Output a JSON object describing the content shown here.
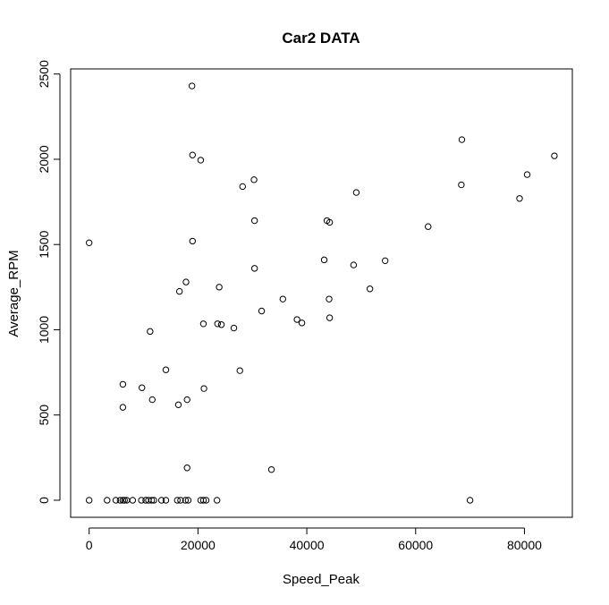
{
  "chart_data": {
    "type": "scatter",
    "title": "Car2 DATA",
    "xlabel": "Speed_Peak",
    "ylabel": "Average_RPM",
    "xlim": [
      -3400,
      88800
    ],
    "ylim": [
      -100,
      2530
    ],
    "x_ticks": [
      0,
      20000,
      40000,
      60000,
      80000
    ],
    "x_tick_labels": [
      "0",
      "20000",
      "40000",
      "60000",
      "80000"
    ],
    "y_ticks": [
      0,
      500,
      1000,
      1500,
      2000,
      2500
    ],
    "y_tick_labels": [
      "0",
      "500",
      "1000",
      "1500",
      "2000",
      "2500"
    ],
    "grid": false,
    "legend": "none",
    "points": [
      {
        "x": 0,
        "y": 1510
      },
      {
        "x": 0,
        "y": 0
      },
      {
        "x": 3300,
        "y": 0
      },
      {
        "x": 4900,
        "y": 0
      },
      {
        "x": 5700,
        "y": 0
      },
      {
        "x": 6200,
        "y": 0
      },
      {
        "x": 6500,
        "y": 0
      },
      {
        "x": 6900,
        "y": 0
      },
      {
        "x": 8000,
        "y": 0
      },
      {
        "x": 9600,
        "y": 0
      },
      {
        "x": 10400,
        "y": 0
      },
      {
        "x": 10900,
        "y": 0
      },
      {
        "x": 11500,
        "y": 0
      },
      {
        "x": 11900,
        "y": 0
      },
      {
        "x": 13300,
        "y": 0
      },
      {
        "x": 14100,
        "y": 0
      },
      {
        "x": 16200,
        "y": 0
      },
      {
        "x": 16800,
        "y": 0
      },
      {
        "x": 17700,
        "y": 0
      },
      {
        "x": 18200,
        "y": 0
      },
      {
        "x": 20500,
        "y": 0
      },
      {
        "x": 21000,
        "y": 0
      },
      {
        "x": 21500,
        "y": 0
      },
      {
        "x": 23500,
        "y": 0
      },
      {
        "x": 70000,
        "y": 0
      },
      {
        "x": 6200,
        "y": 680
      },
      {
        "x": 6200,
        "y": 545
      },
      {
        "x": 9700,
        "y": 660
      },
      {
        "x": 11200,
        "y": 990
      },
      {
        "x": 11600,
        "y": 590
      },
      {
        "x": 14100,
        "y": 765
      },
      {
        "x": 16400,
        "y": 560
      },
      {
        "x": 16600,
        "y": 1225
      },
      {
        "x": 17800,
        "y": 1280
      },
      {
        "x": 18000,
        "y": 590
      },
      {
        "x": 18000,
        "y": 190
      },
      {
        "x": 18900,
        "y": 2430
      },
      {
        "x": 19000,
        "y": 2025
      },
      {
        "x": 19000,
        "y": 1520
      },
      {
        "x": 20500,
        "y": 1995
      },
      {
        "x": 21000,
        "y": 1035
      },
      {
        "x": 21100,
        "y": 655
      },
      {
        "x": 23600,
        "y": 1035
      },
      {
        "x": 23900,
        "y": 1250
      },
      {
        "x": 24300,
        "y": 1030
      },
      {
        "x": 26600,
        "y": 1010
      },
      {
        "x": 27700,
        "y": 760
      },
      {
        "x": 28200,
        "y": 1840
      },
      {
        "x": 30300,
        "y": 1880
      },
      {
        "x": 30400,
        "y": 1640
      },
      {
        "x": 30400,
        "y": 1360
      },
      {
        "x": 31700,
        "y": 1110
      },
      {
        "x": 33500,
        "y": 180
      },
      {
        "x": 35600,
        "y": 1180
      },
      {
        "x": 38200,
        "y": 1060
      },
      {
        "x": 39100,
        "y": 1040
      },
      {
        "x": 43200,
        "y": 1410
      },
      {
        "x": 43700,
        "y": 1640
      },
      {
        "x": 44200,
        "y": 1630
      },
      {
        "x": 44100,
        "y": 1180
      },
      {
        "x": 44200,
        "y": 1070
      },
      {
        "x": 48600,
        "y": 1380
      },
      {
        "x": 49100,
        "y": 1805
      },
      {
        "x": 51600,
        "y": 1240
      },
      {
        "x": 54400,
        "y": 1405
      },
      {
        "x": 62300,
        "y": 1605
      },
      {
        "x": 68400,
        "y": 1850
      },
      {
        "x": 68500,
        "y": 2115
      },
      {
        "x": 79100,
        "y": 1770
      },
      {
        "x": 80500,
        "y": 1910
      },
      {
        "x": 85500,
        "y": 2020
      }
    ]
  }
}
